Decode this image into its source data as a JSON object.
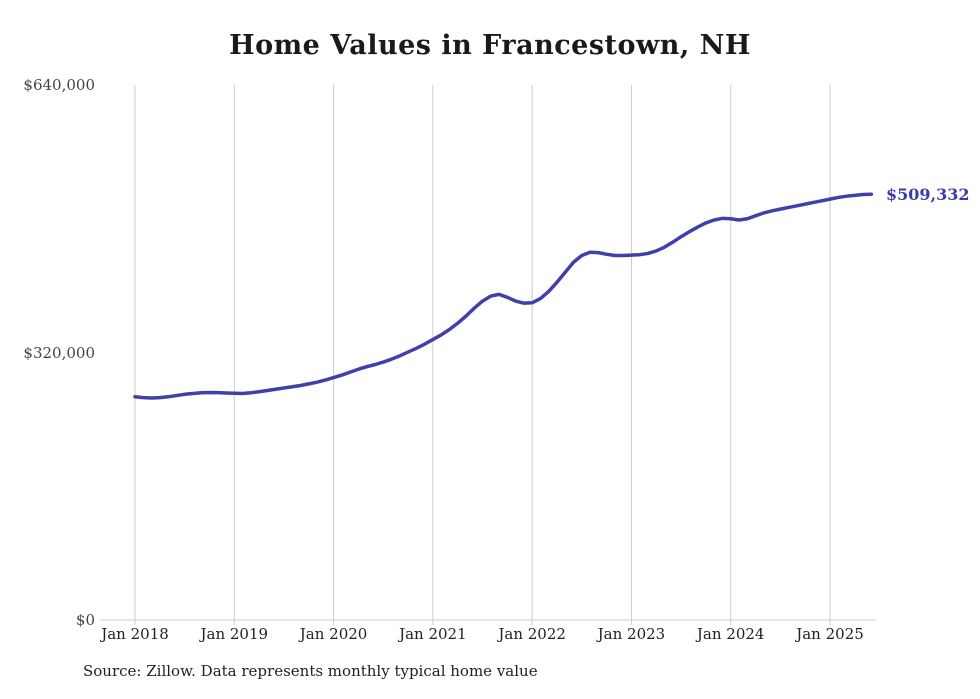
{
  "chart_data": {
    "type": "line",
    "title": "Home Values in Francestown, NH",
    "source": "Source: Zillow. Data represents monthly typical home value",
    "series_name": "Typical home value",
    "frequency": "monthly",
    "start_month": "Jan 2018",
    "end_month": "Jun 2025",
    "end_label": "$509,332",
    "end_value": 509332,
    "line_color": "#4040a8",
    "grid_color": "#cccccc",
    "ylim": [
      0,
      640000
    ],
    "ytick_values": [
      0,
      320000,
      640000
    ],
    "ytick_labels": [
      "$0",
      "$320,000",
      "$640,000"
    ],
    "xtick_labels": [
      "Jan 2018",
      "Jan 2019",
      "Jan 2020",
      "Jan 2021",
      "Jan 2022",
      "Jan 2023",
      "Jan 2024",
      "Jan 2025"
    ],
    "values": [
      267000,
      266000,
      265500,
      266000,
      267000,
      268500,
      270000,
      271000,
      271800,
      272200,
      272000,
      271500,
      271200,
      271000,
      271800,
      273000,
      274500,
      276000,
      277500,
      279000,
      280500,
      282500,
      284500,
      287000,
      290000,
      293000,
      296500,
      300000,
      303000,
      305500,
      308500,
      312000,
      316000,
      320500,
      325000,
      330000,
      335500,
      341000,
      347500,
      355000,
      363500,
      373000,
      381500,
      387500,
      389500,
      386000,
      381500,
      379000,
      379500,
      384500,
      393000,
      404000,
      416000,
      428000,
      436000,
      440000,
      439500,
      437500,
      436000,
      436000,
      436500,
      437000,
      438500,
      441500,
      446000,
      452000,
      458500,
      464500,
      470000,
      475000,
      478500,
      480500,
      480000,
      478500,
      480000,
      483500,
      487000,
      489500,
      491500,
      493500,
      495500,
      497500,
      499500,
      501500,
      503500,
      505500,
      507000,
      508000,
      509000,
      509332
    ]
  }
}
